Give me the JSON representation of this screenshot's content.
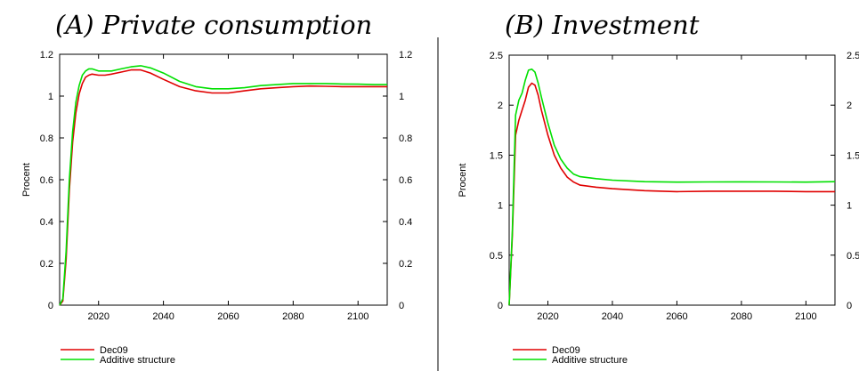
{
  "chart_data": [
    {
      "type": "line",
      "title": "(A) Private consumption",
      "ylabel": "Procent",
      "xlim": [
        2008,
        2109
      ],
      "ylim": [
        0,
        1.2
      ],
      "x_ticks": [
        "2020",
        "2040",
        "2060",
        "2080",
        "2100"
      ],
      "y_ticks": [
        "0",
        "0.2",
        "0.4",
        "0.6",
        "0.8",
        "1",
        "1.2"
      ],
      "y_ticks_right": [
        "0",
        "0.2",
        "0.4",
        "0.6",
        "0.8",
        "1",
        "1.2"
      ],
      "grid": false,
      "legend_position": "bottom-left",
      "series": [
        {
          "name": "Dec09",
          "color": "#e00000",
          "points": [
            [
              2008,
              0
            ],
            [
              2009,
              0.02
            ],
            [
              2010,
              0.22
            ],
            [
              2011,
              0.55
            ],
            [
              2012,
              0.78
            ],
            [
              2013,
              0.92
            ],
            [
              2014,
              1.01
            ],
            [
              2015,
              1.06
            ],
            [
              2016,
              1.09
            ],
            [
              2017,
              1.1
            ],
            [
              2018,
              1.105
            ],
            [
              2020,
              1.1
            ],
            [
              2022,
              1.1
            ],
            [
              2024,
              1.105
            ],
            [
              2027,
              1.115
            ],
            [
              2030,
              1.125
            ],
            [
              2033,
              1.125
            ],
            [
              2036,
              1.11
            ],
            [
              2040,
              1.08
            ],
            [
              2045,
              1.045
            ],
            [
              2050,
              1.025
            ],
            [
              2055,
              1.015
            ],
            [
              2060,
              1.015
            ],
            [
              2065,
              1.025
            ],
            [
              2070,
              1.035
            ],
            [
              2075,
              1.04
            ],
            [
              2080,
              1.045
            ],
            [
              2085,
              1.048
            ],
            [
              2090,
              1.047
            ],
            [
              2095,
              1.045
            ],
            [
              2100,
              1.045
            ],
            [
              2105,
              1.045
            ],
            [
              2109,
              1.045
            ]
          ]
        },
        {
          "name": "Additive structure",
          "color": "#00e000",
          "points": [
            [
              2008,
              0
            ],
            [
              2009,
              0.03
            ],
            [
              2010,
              0.26
            ],
            [
              2011,
              0.6
            ],
            [
              2012,
              0.83
            ],
            [
              2013,
              0.97
            ],
            [
              2014,
              1.05
            ],
            [
              2015,
              1.1
            ],
            [
              2016,
              1.12
            ],
            [
              2017,
              1.13
            ],
            [
              2018,
              1.13
            ],
            [
              2020,
              1.12
            ],
            [
              2022,
              1.12
            ],
            [
              2024,
              1.12
            ],
            [
              2027,
              1.13
            ],
            [
              2030,
              1.14
            ],
            [
              2033,
              1.145
            ],
            [
              2036,
              1.135
            ],
            [
              2040,
              1.11
            ],
            [
              2045,
              1.07
            ],
            [
              2050,
              1.045
            ],
            [
              2055,
              1.035
            ],
            [
              2060,
              1.035
            ],
            [
              2065,
              1.04
            ],
            [
              2070,
              1.05
            ],
            [
              2075,
              1.055
            ],
            [
              2080,
              1.06
            ],
            [
              2085,
              1.06
            ],
            [
              2090,
              1.06
            ],
            [
              2095,
              1.058
            ],
            [
              2100,
              1.057
            ],
            [
              2105,
              1.055
            ],
            [
              2109,
              1.055
            ]
          ]
        }
      ]
    },
    {
      "type": "line",
      "title": "(B) Investment",
      "ylabel": "Procent",
      "xlim": [
        2008,
        2109
      ],
      "ylim": [
        0,
        2.5
      ],
      "x_ticks": [
        "2020",
        "2040",
        "2060",
        "2080",
        "2100"
      ],
      "y_ticks": [
        "0",
        "0.5",
        "1",
        "1.5",
        "2",
        "2.5"
      ],
      "y_ticks_right": [
        "0",
        "0.5",
        "1",
        "1.5",
        "2",
        "2.5"
      ],
      "grid": false,
      "legend_position": "bottom-left",
      "series": [
        {
          "name": "Dec09",
          "color": "#e00000",
          "points": [
            [
              2008,
              0
            ],
            [
              2009,
              0.7
            ],
            [
              2010,
              1.7
            ],
            [
              2011,
              1.85
            ],
            [
              2012,
              1.95
            ],
            [
              2013,
              2.05
            ],
            [
              2014,
              2.18
            ],
            [
              2015,
              2.22
            ],
            [
              2016,
              2.2
            ],
            [
              2017,
              2.1
            ],
            [
              2018,
              1.95
            ],
            [
              2020,
              1.7
            ],
            [
              2022,
              1.5
            ],
            [
              2024,
              1.37
            ],
            [
              2026,
              1.28
            ],
            [
              2028,
              1.23
            ],
            [
              2030,
              1.2
            ],
            [
              2035,
              1.18
            ],
            [
              2040,
              1.165
            ],
            [
              2050,
              1.145
            ],
            [
              2060,
              1.135
            ],
            [
              2070,
              1.14
            ],
            [
              2080,
              1.14
            ],
            [
              2090,
              1.14
            ],
            [
              2100,
              1.135
            ],
            [
              2109,
              1.135
            ]
          ]
        },
        {
          "name": "Additive structure",
          "color": "#00e000",
          "points": [
            [
              2008,
              0
            ],
            [
              2009,
              0.75
            ],
            [
              2010,
              1.9
            ],
            [
              2011,
              2.05
            ],
            [
              2012,
              2.12
            ],
            [
              2013,
              2.25
            ],
            [
              2014,
              2.35
            ],
            [
              2015,
              2.36
            ],
            [
              2016,
              2.33
            ],
            [
              2017,
              2.22
            ],
            [
              2018,
              2.08
            ],
            [
              2020,
              1.82
            ],
            [
              2022,
              1.6
            ],
            [
              2024,
              1.46
            ],
            [
              2026,
              1.37
            ],
            [
              2028,
              1.31
            ],
            [
              2030,
              1.285
            ],
            [
              2035,
              1.265
            ],
            [
              2040,
              1.25
            ],
            [
              2050,
              1.235
            ],
            [
              2060,
              1.23
            ],
            [
              2070,
              1.232
            ],
            [
              2080,
              1.233
            ],
            [
              2090,
              1.232
            ],
            [
              2100,
              1.23
            ],
            [
              2109,
              1.235
            ]
          ]
        }
      ]
    }
  ]
}
